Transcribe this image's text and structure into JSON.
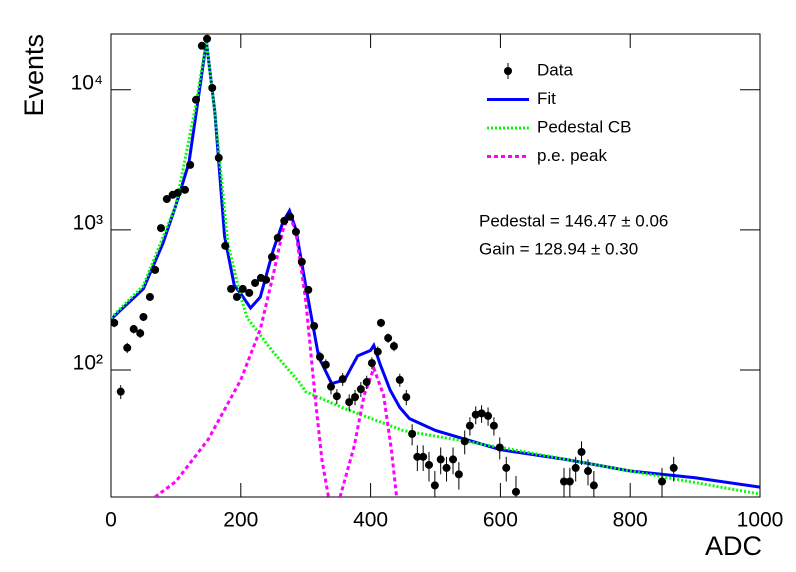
{
  "chart_data": {
    "type": "scatter",
    "xlabel": "ADC",
    "ylabel": "Events",
    "log_y": true,
    "xlim": [
      0,
      1000
    ],
    "ylim": [
      12.4,
      25000
    ],
    "xticks": [
      0,
      200,
      400,
      600,
      800,
      1000
    ],
    "yticks": [
      {
        "value": 100,
        "label": "10²"
      },
      {
        "value": 1000,
        "label": "10³"
      },
      {
        "value": 10000,
        "label": "10⁴"
      }
    ],
    "annotations": [
      "Pedestal = 146.47 ± 0.06",
      "Gain = 128.94 ± 0.30"
    ],
    "series": [
      {
        "name": "Data",
        "color": "#000000",
        "style": "points",
        "x": [
          5,
          15,
          25,
          35,
          45,
          50,
          60,
          68,
          77,
          86,
          95,
          103,
          114,
          122,
          131,
          140,
          148,
          156,
          166,
          176,
          185,
          194,
          203,
          213,
          222,
          231,
          239,
          248,
          257,
          267,
          276,
          285,
          294,
          304,
          313,
          322,
          331,
          339,
          348,
          357,
          367,
          376,
          385,
          394,
          402,
          411,
          416,
          427,
          436,
          445,
          455,
          464,
          472,
          481,
          490,
          499,
          508,
          517,
          527,
          536,
          545,
          553,
          562,
          571,
          581,
          590,
          599,
          609,
          624,
          698,
          707,
          716,
          725,
          735,
          744,
          849,
          867
        ],
        "values": [
          217,
          70,
          144,
          196,
          183,
          239,
          332,
          518,
          1030,
          1660,
          1780,
          1840,
          1930,
          2910,
          8480,
          20600,
          23100,
          10300,
          3270,
          769,
          379,
          332,
          379,
          355,
          418,
          454,
          440,
          641,
          877,
          1160,
          1240,
          968,
          591,
          373,
          206,
          124,
          109,
          76,
          65,
          86,
          59,
          64,
          73,
          82,
          112,
          135,
          217,
          169,
          148,
          85,
          64,
          35,
          24,
          24,
          21,
          15,
          23,
          20,
          23,
          18,
          31,
          40,
          48,
          49,
          47,
          40,
          28,
          20,
          13.5,
          16,
          16,
          20,
          26,
          19,
          15,
          16,
          20
        ],
        "errors": [
          15,
          8,
          12,
          14,
          14,
          15,
          18,
          23,
          32,
          41,
          42,
          43,
          44,
          54,
          92,
          144,
          152,
          101,
          57,
          28,
          19,
          18,
          19,
          19,
          20,
          21,
          21,
          25,
          30,
          34,
          35,
          31,
          24,
          19,
          14,
          11,
          10,
          9,
          8,
          9,
          8,
          8,
          9,
          9,
          11,
          12,
          15,
          13,
          12,
          9,
          8,
          6,
          5,
          5,
          5,
          4,
          5,
          4,
          5,
          4,
          6,
          6,
          7,
          7,
          7,
          6,
          5,
          4,
          4,
          4,
          4,
          4,
          5,
          4,
          4,
          4,
          4
        ]
      },
      {
        "name": "Fit",
        "color": "#0000ff",
        "style": "solid",
        "x": [
          0,
          50,
          80,
          100,
          120,
          135,
          147,
          160,
          175,
          190,
          200,
          215,
          230,
          250,
          265,
          275,
          285,
          300,
          320,
          340,
          360,
          380,
          400,
          405,
          415,
          430,
          445,
          460,
          500,
          600,
          700,
          800,
          900,
          1000
        ],
        "values": [
          230,
          380,
          800,
          1500,
          3000,
          9000,
          22000,
          7000,
          900,
          400,
          350,
          277,
          332,
          720,
          1140,
          1370,
          1000,
          400,
          124,
          80,
          85,
          126,
          138,
          150,
          109,
          72,
          54,
          45,
          37,
          27,
          23,
          19,
          17,
          14.6
        ]
      },
      {
        "name": "Pedestal CB",
        "color": "#00ff00",
        "style": "dotted",
        "x": [
          0,
          50,
          100,
          130,
          147,
          160,
          180,
          200,
          210,
          250,
          290,
          300,
          360,
          450,
          600,
          800,
          1000
        ],
        "values": [
          235,
          400,
          1500,
          7500,
          22000,
          7000,
          800,
          330,
          235,
          134,
          82,
          70,
          53,
          37,
          28,
          19,
          13
        ]
      },
      {
        "name": "p.e. peak",
        "color": "#ff00ff",
        "style": "dashed",
        "x": [
          68,
          100,
          150,
          200,
          230,
          250,
          265,
          275,
          285,
          300,
          315,
          325,
          335,
          345,
          353,
          375,
          390,
          405,
          420,
          432,
          440
        ],
        "values": [
          12.4,
          16,
          32,
          85,
          195,
          480,
          1000,
          1300,
          950,
          316,
          61,
          23,
          12.5,
          null,
          12.4,
          29,
          66,
          103,
          66,
          27,
          12.4
        ]
      }
    ]
  }
}
